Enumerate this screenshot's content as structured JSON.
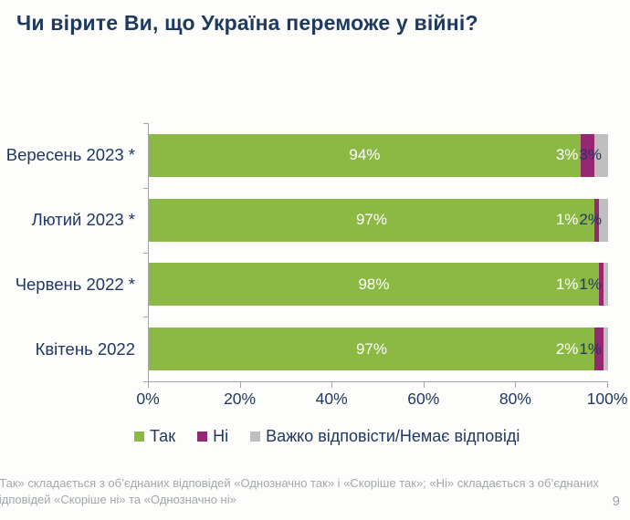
{
  "title": "Чи вірите Ви, що Україна переможе у війні?",
  "page_number": "9",
  "footnote": {
    "line1": "«Так» складається з об’єднаних відповідей «Однозначно так» і «Скоріше так»; «Ні» складається з об’єднаних",
    "line2": "відповідей «Скоріше ні» та «Однозначно ні»"
  },
  "colors": {
    "title_text": "#1e3a60",
    "axis_text": "#1f3864",
    "axis_line": "#a6a6a6",
    "footnote_text": "#a2a7ad",
    "background": "#fdfdfb"
  },
  "chart_data": {
    "type": "bar",
    "orientation": "horizontal",
    "stacked": true,
    "title": "Чи вірите Ви, що Україна переможе у війні?",
    "categories": [
      "Вересень 2023 *",
      "Лютий 2023 *",
      "Червень 2022 *",
      "Квітень 2022"
    ],
    "series": [
      {
        "name": "Так",
        "color": "#8cb944",
        "label_color": "#ffffff",
        "values": [
          94,
          97,
          98,
          97
        ]
      },
      {
        "name": "Ні",
        "color": "#962871",
        "label_color": "#ffffff",
        "values": [
          3,
          1,
          1,
          2
        ]
      },
      {
        "name": "Важко відповісти/Немає відповіді",
        "color": "#bfbfbf",
        "label_color": "#1f3864",
        "values": [
          3,
          2,
          1,
          1
        ]
      }
    ],
    "value_suffix": "%",
    "xlim": [
      0,
      100
    ],
    "x_ticks": [
      "0%",
      "20%",
      "40%",
      "60%",
      "80%",
      "100%"
    ],
    "grid": false,
    "legend_position": "bottom"
  }
}
